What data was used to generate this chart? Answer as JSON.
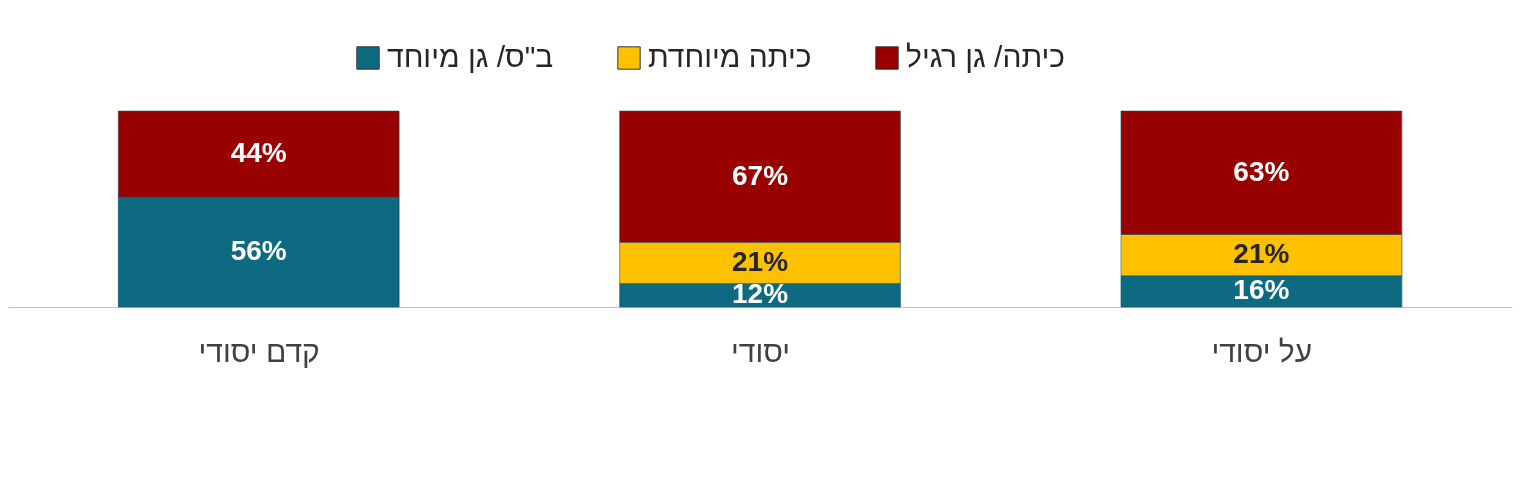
{
  "chart_data": {
    "type": "bar",
    "stacked": true,
    "categories": [
      "קדם יסודי",
      "יסודי",
      "על יסודי"
    ],
    "series": [
      {
        "name": "ב\"ס/ גן מיוחד",
        "color": "#0e6a80",
        "values": [
          56,
          12,
          16
        ],
        "value_labels": [
          "56%",
          "12%",
          "16%"
        ]
      },
      {
        "name": "כיתה מיוחדת",
        "color": "#ffc000",
        "values": [
          null,
          21,
          21
        ],
        "value_labels": [
          null,
          "21%",
          "21%"
        ]
      },
      {
        "name": "כיתה/ גן רגיל",
        "color": "#990000",
        "values": [
          44,
          67,
          63
        ],
        "value_labels": [
          "44%",
          "67%",
          "63%"
        ]
      }
    ],
    "tick_labels": "x",
    "legend": "top",
    "grid": "x"
  }
}
